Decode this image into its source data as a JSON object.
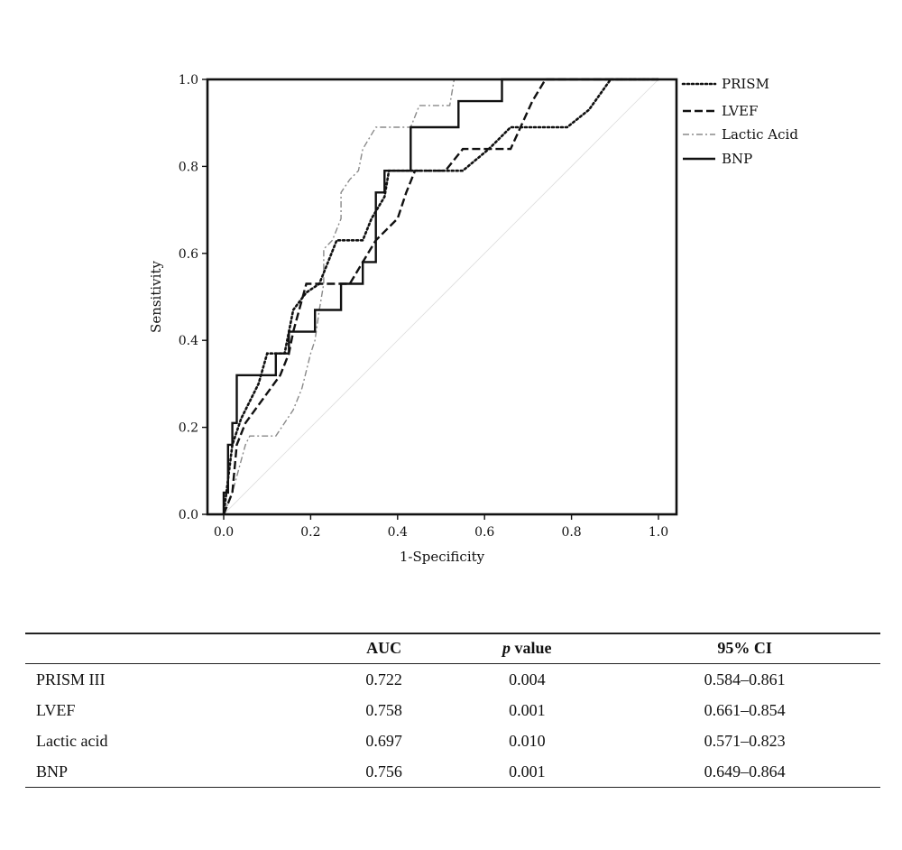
{
  "chart_data": {
    "type": "line",
    "title": "",
    "xlabel": "1-Specificity",
    "ylabel": "Sensitivity",
    "xlim": [
      0.0,
      1.0
    ],
    "ylim": [
      0.0,
      1.0
    ],
    "xticks": [
      "0.0",
      "0.2",
      "0.4",
      "0.6",
      "0.8",
      "1.0"
    ],
    "yticks": [
      "0.0",
      "0.2",
      "0.4",
      "0.6",
      "0.8",
      "1.0"
    ],
    "grid": false,
    "legend_position": "right-top",
    "series": [
      {
        "name": "PRISM",
        "style": "dotted",
        "color": "#111111",
        "points": [
          [
            0.0,
            0.0
          ],
          [
            0.02,
            0.16
          ],
          [
            0.04,
            0.22
          ],
          [
            0.08,
            0.3
          ],
          [
            0.1,
            0.37
          ],
          [
            0.14,
            0.37
          ],
          [
            0.16,
            0.47
          ],
          [
            0.19,
            0.51
          ],
          [
            0.22,
            0.53
          ],
          [
            0.24,
            0.58
          ],
          [
            0.26,
            0.63
          ],
          [
            0.32,
            0.63
          ],
          [
            0.34,
            0.68
          ],
          [
            0.37,
            0.73
          ],
          [
            0.38,
            0.79
          ],
          [
            0.55,
            0.79
          ],
          [
            0.61,
            0.84
          ],
          [
            0.66,
            0.89
          ],
          [
            0.79,
            0.89
          ],
          [
            0.84,
            0.93
          ],
          [
            0.89,
            1.0
          ],
          [
            1.0,
            1.0
          ]
        ]
      },
      {
        "name": "LVEF",
        "style": "dashed",
        "color": "#111111",
        "points": [
          [
            0.0,
            0.0
          ],
          [
            0.02,
            0.05
          ],
          [
            0.03,
            0.16
          ],
          [
            0.05,
            0.21
          ],
          [
            0.13,
            0.32
          ],
          [
            0.15,
            0.37
          ],
          [
            0.16,
            0.42
          ],
          [
            0.19,
            0.53
          ],
          [
            0.29,
            0.53
          ],
          [
            0.32,
            0.58
          ],
          [
            0.35,
            0.63
          ],
          [
            0.4,
            0.68
          ],
          [
            0.42,
            0.74
          ],
          [
            0.44,
            0.79
          ],
          [
            0.51,
            0.79
          ],
          [
            0.55,
            0.84
          ],
          [
            0.66,
            0.84
          ],
          [
            0.71,
            0.95
          ],
          [
            0.74,
            1.0
          ],
          [
            1.0,
            1.0
          ]
        ]
      },
      {
        "name": "Lactic Acid",
        "style": "dash-dot-gray",
        "color": "#8a8a8a",
        "points": [
          [
            0.0,
            0.0
          ],
          [
            0.02,
            0.05
          ],
          [
            0.05,
            0.16
          ],
          [
            0.06,
            0.18
          ],
          [
            0.12,
            0.18
          ],
          [
            0.16,
            0.24
          ],
          [
            0.18,
            0.29
          ],
          [
            0.2,
            0.37
          ],
          [
            0.21,
            0.4
          ],
          [
            0.22,
            0.47
          ],
          [
            0.23,
            0.53
          ],
          [
            0.23,
            0.61
          ],
          [
            0.25,
            0.63
          ],
          [
            0.27,
            0.68
          ],
          [
            0.27,
            0.74
          ],
          [
            0.29,
            0.77
          ],
          [
            0.31,
            0.79
          ],
          [
            0.32,
            0.84
          ],
          [
            0.35,
            0.89
          ],
          [
            0.43,
            0.89
          ],
          [
            0.45,
            0.94
          ],
          [
            0.52,
            0.94
          ],
          [
            0.53,
            1.0
          ],
          [
            1.0,
            1.0
          ]
        ]
      },
      {
        "name": "BNP",
        "style": "solid",
        "color": "#111111",
        "points": [
          [
            0.0,
            0.0
          ],
          [
            0.0,
            0.05
          ],
          [
            0.01,
            0.05
          ],
          [
            0.01,
            0.16
          ],
          [
            0.02,
            0.16
          ],
          [
            0.02,
            0.21
          ],
          [
            0.03,
            0.21
          ],
          [
            0.03,
            0.32
          ],
          [
            0.12,
            0.32
          ],
          [
            0.12,
            0.37
          ],
          [
            0.15,
            0.37
          ],
          [
            0.15,
            0.42
          ],
          [
            0.21,
            0.42
          ],
          [
            0.21,
            0.47
          ],
          [
            0.27,
            0.47
          ],
          [
            0.27,
            0.53
          ],
          [
            0.32,
            0.53
          ],
          [
            0.32,
            0.58
          ],
          [
            0.35,
            0.58
          ],
          [
            0.35,
            0.74
          ],
          [
            0.37,
            0.74
          ],
          [
            0.37,
            0.79
          ],
          [
            0.43,
            0.79
          ],
          [
            0.43,
            0.89
          ],
          [
            0.54,
            0.89
          ],
          [
            0.54,
            0.95
          ],
          [
            0.64,
            0.95
          ],
          [
            0.64,
            1.0
          ],
          [
            1.0,
            1.0
          ]
        ]
      }
    ],
    "reference_line": {
      "points": [
        [
          0.0,
          0.0
        ],
        [
          1.0,
          1.0
        ]
      ]
    },
    "table": {
      "columns": [
        "",
        "AUC",
        "p value",
        "95% CI"
      ],
      "rows": [
        [
          "PRISM III",
          "0.722",
          "0.004",
          "0.584–0.861"
        ],
        [
          "LVEF",
          "0.758",
          "0.001",
          "0.661–0.854"
        ],
        [
          "Lactic acid",
          "0.697",
          "0.010",
          "0.571–0.823"
        ],
        [
          "BNP",
          "0.756",
          "0.001",
          "0.649–0.864"
        ]
      ]
    }
  }
}
